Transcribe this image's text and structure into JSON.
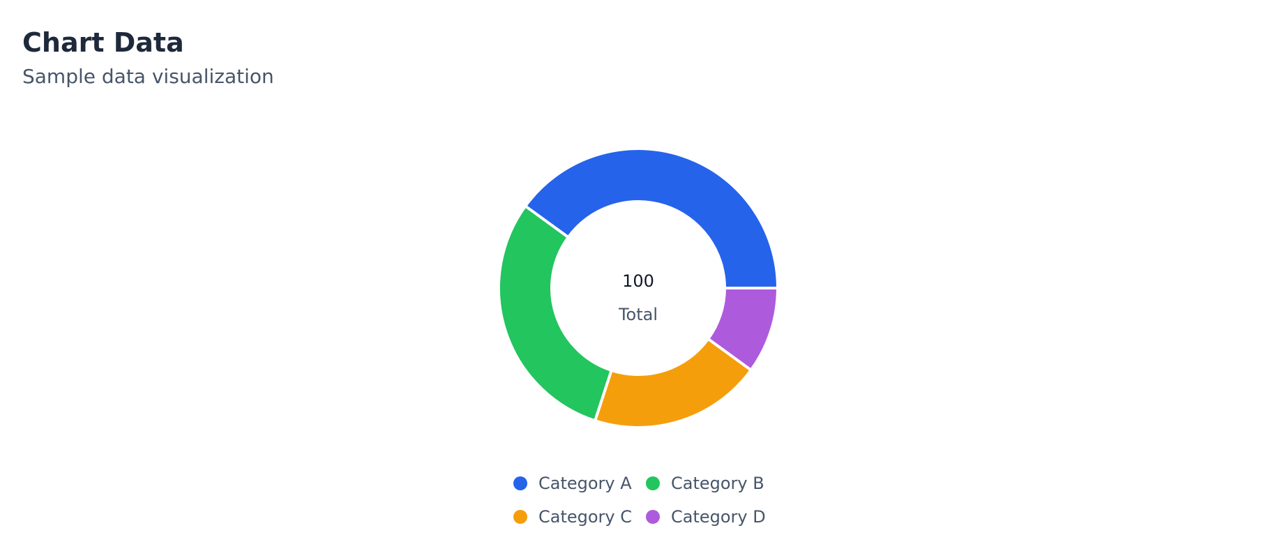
{
  "page": {
    "title": "Chart Data",
    "subtitle": "Sample data visualization"
  },
  "chart_data": {
    "type": "pie",
    "variant": "donut",
    "center_value": "100",
    "center_label": "Total",
    "categories": [
      "Category A",
      "Category B",
      "Category C",
      "Category D"
    ],
    "values": [
      40,
      30,
      20,
      10
    ],
    "colors": [
      "#2563eb",
      "#22c55e",
      "#f59e0b",
      "#ad5bdc"
    ],
    "legend_position": "bottom"
  }
}
